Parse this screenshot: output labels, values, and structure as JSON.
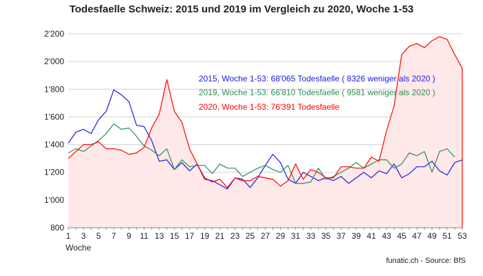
{
  "chart_data": {
    "type": "line",
    "title": "Todesfaelle Schweiz: 2015 und 2019 im Vergleich zu 2020, Woche 1-53",
    "xlabel": "Woche",
    "ylabel": "",
    "ylim": [
      800,
      2200
    ],
    "xlim": [
      1,
      53
    ],
    "y_ticks": [
      800,
      1000,
      1200,
      1400,
      1600,
      1800,
      2000,
      2200
    ],
    "y_tick_labels": [
      "800",
      "1'000",
      "1'200",
      "1'400",
      "1'600",
      "1'800",
      "2'000",
      "2'200"
    ],
    "x_tick_labels": [
      "1",
      "3",
      "5",
      "7",
      "9",
      "11",
      "13",
      "15",
      "17",
      "19",
      "21",
      "23",
      "25",
      "27",
      "29",
      "31",
      "33",
      "35",
      "37",
      "39",
      "41",
      "43",
      "45",
      "47",
      "49",
      "51",
      "53"
    ],
    "grid": "horizontal",
    "x": [
      1,
      2,
      3,
      4,
      5,
      6,
      7,
      8,
      9,
      10,
      11,
      12,
      13,
      14,
      15,
      16,
      17,
      18,
      19,
      20,
      21,
      22,
      23,
      24,
      25,
      26,
      27,
      28,
      29,
      30,
      31,
      32,
      33,
      34,
      35,
      36,
      37,
      38,
      39,
      40,
      41,
      42,
      43,
      44,
      45,
      46,
      47,
      48,
      49,
      50,
      51,
      52,
      53
    ],
    "series": [
      {
        "key": "s2015",
        "color": "#1a1ae6",
        "fill": false,
        "values": [
          1410,
          1490,
          1510,
          1480,
          1580,
          1640,
          1795,
          1760,
          1710,
          1540,
          1530,
          1430,
          1280,
          1290,
          1220,
          1270,
          1210,
          1260,
          1150,
          1140,
          1110,
          1080,
          1160,
          1150,
          1090,
          1160,
          1250,
          1330,
          1270,
          1150,
          1120,
          1200,
          1170,
          1140,
          1160,
          1140,
          1170,
          1120,
          1160,
          1200,
          1160,
          1210,
          1190,
          1260,
          1160,
          1190,
          1240,
          1240,
          1280,
          1210,
          1180,
          1270,
          1290
        ]
      },
      {
        "key": "s2019",
        "color": "#2e8b57",
        "fill": false,
        "values": [
          1340,
          1370,
          1350,
          1390,
          1430,
          1480,
          1550,
          1510,
          1520,
          1460,
          1390,
          1360,
          1320,
          1370,
          1220,
          1290,
          1240,
          1250,
          1250,
          1190,
          1260,
          1230,
          1230,
          1170,
          1200,
          1230,
          1250,
          1220,
          1200,
          1250,
          1120,
          1120,
          1130,
          1230,
          1150,
          1170,
          1200,
          1230,
          1270,
          1230,
          1260,
          1290,
          1290,
          1230,
          1260,
          1340,
          1320,
          1350,
          1200,
          1350,
          1370,
          1310,
          null
        ]
      },
      {
        "key": "s2020",
        "color": "#ff0000",
        "fill": true,
        "fill_color": "#ffe8e8",
        "values": [
          1300,
          1350,
          1400,
          1400,
          1420,
          1370,
          1370,
          1360,
          1330,
          1340,
          1380,
          1520,
          1620,
          1870,
          1640,
          1560,
          1370,
          1260,
          1160,
          1130,
          1150,
          1090,
          1160,
          1140,
          1140,
          1170,
          1160,
          1150,
          1100,
          1140,
          1260,
          1150,
          1220,
          1200,
          1160,
          1160,
          1240,
          1240,
          1230,
          1230,
          1310,
          1280,
          1500,
          1680,
          2050,
          2110,
          2130,
          2100,
          2150,
          2180,
          2160,
          2050,
          1950
        ]
      }
    ],
    "annotations": [
      {
        "key": "a2015",
        "text": "2015, Woche 1-53: 68'065 Todesfaelle ( 8326 weniger als 2020 )",
        "color": "#1a1ae6"
      },
      {
        "key": "a2019",
        "text": "2019, Woche 1-53: 66'810 Todesfaelle ( 9581 weniger als 2020 )",
        "color": "#2e8b57"
      },
      {
        "key": "a2020",
        "text": "2020, Woche 1-53: 76'391 Todesfaelle",
        "color": "#ff0000"
      }
    ],
    "source": "funatic.ch - Source: BfS"
  }
}
